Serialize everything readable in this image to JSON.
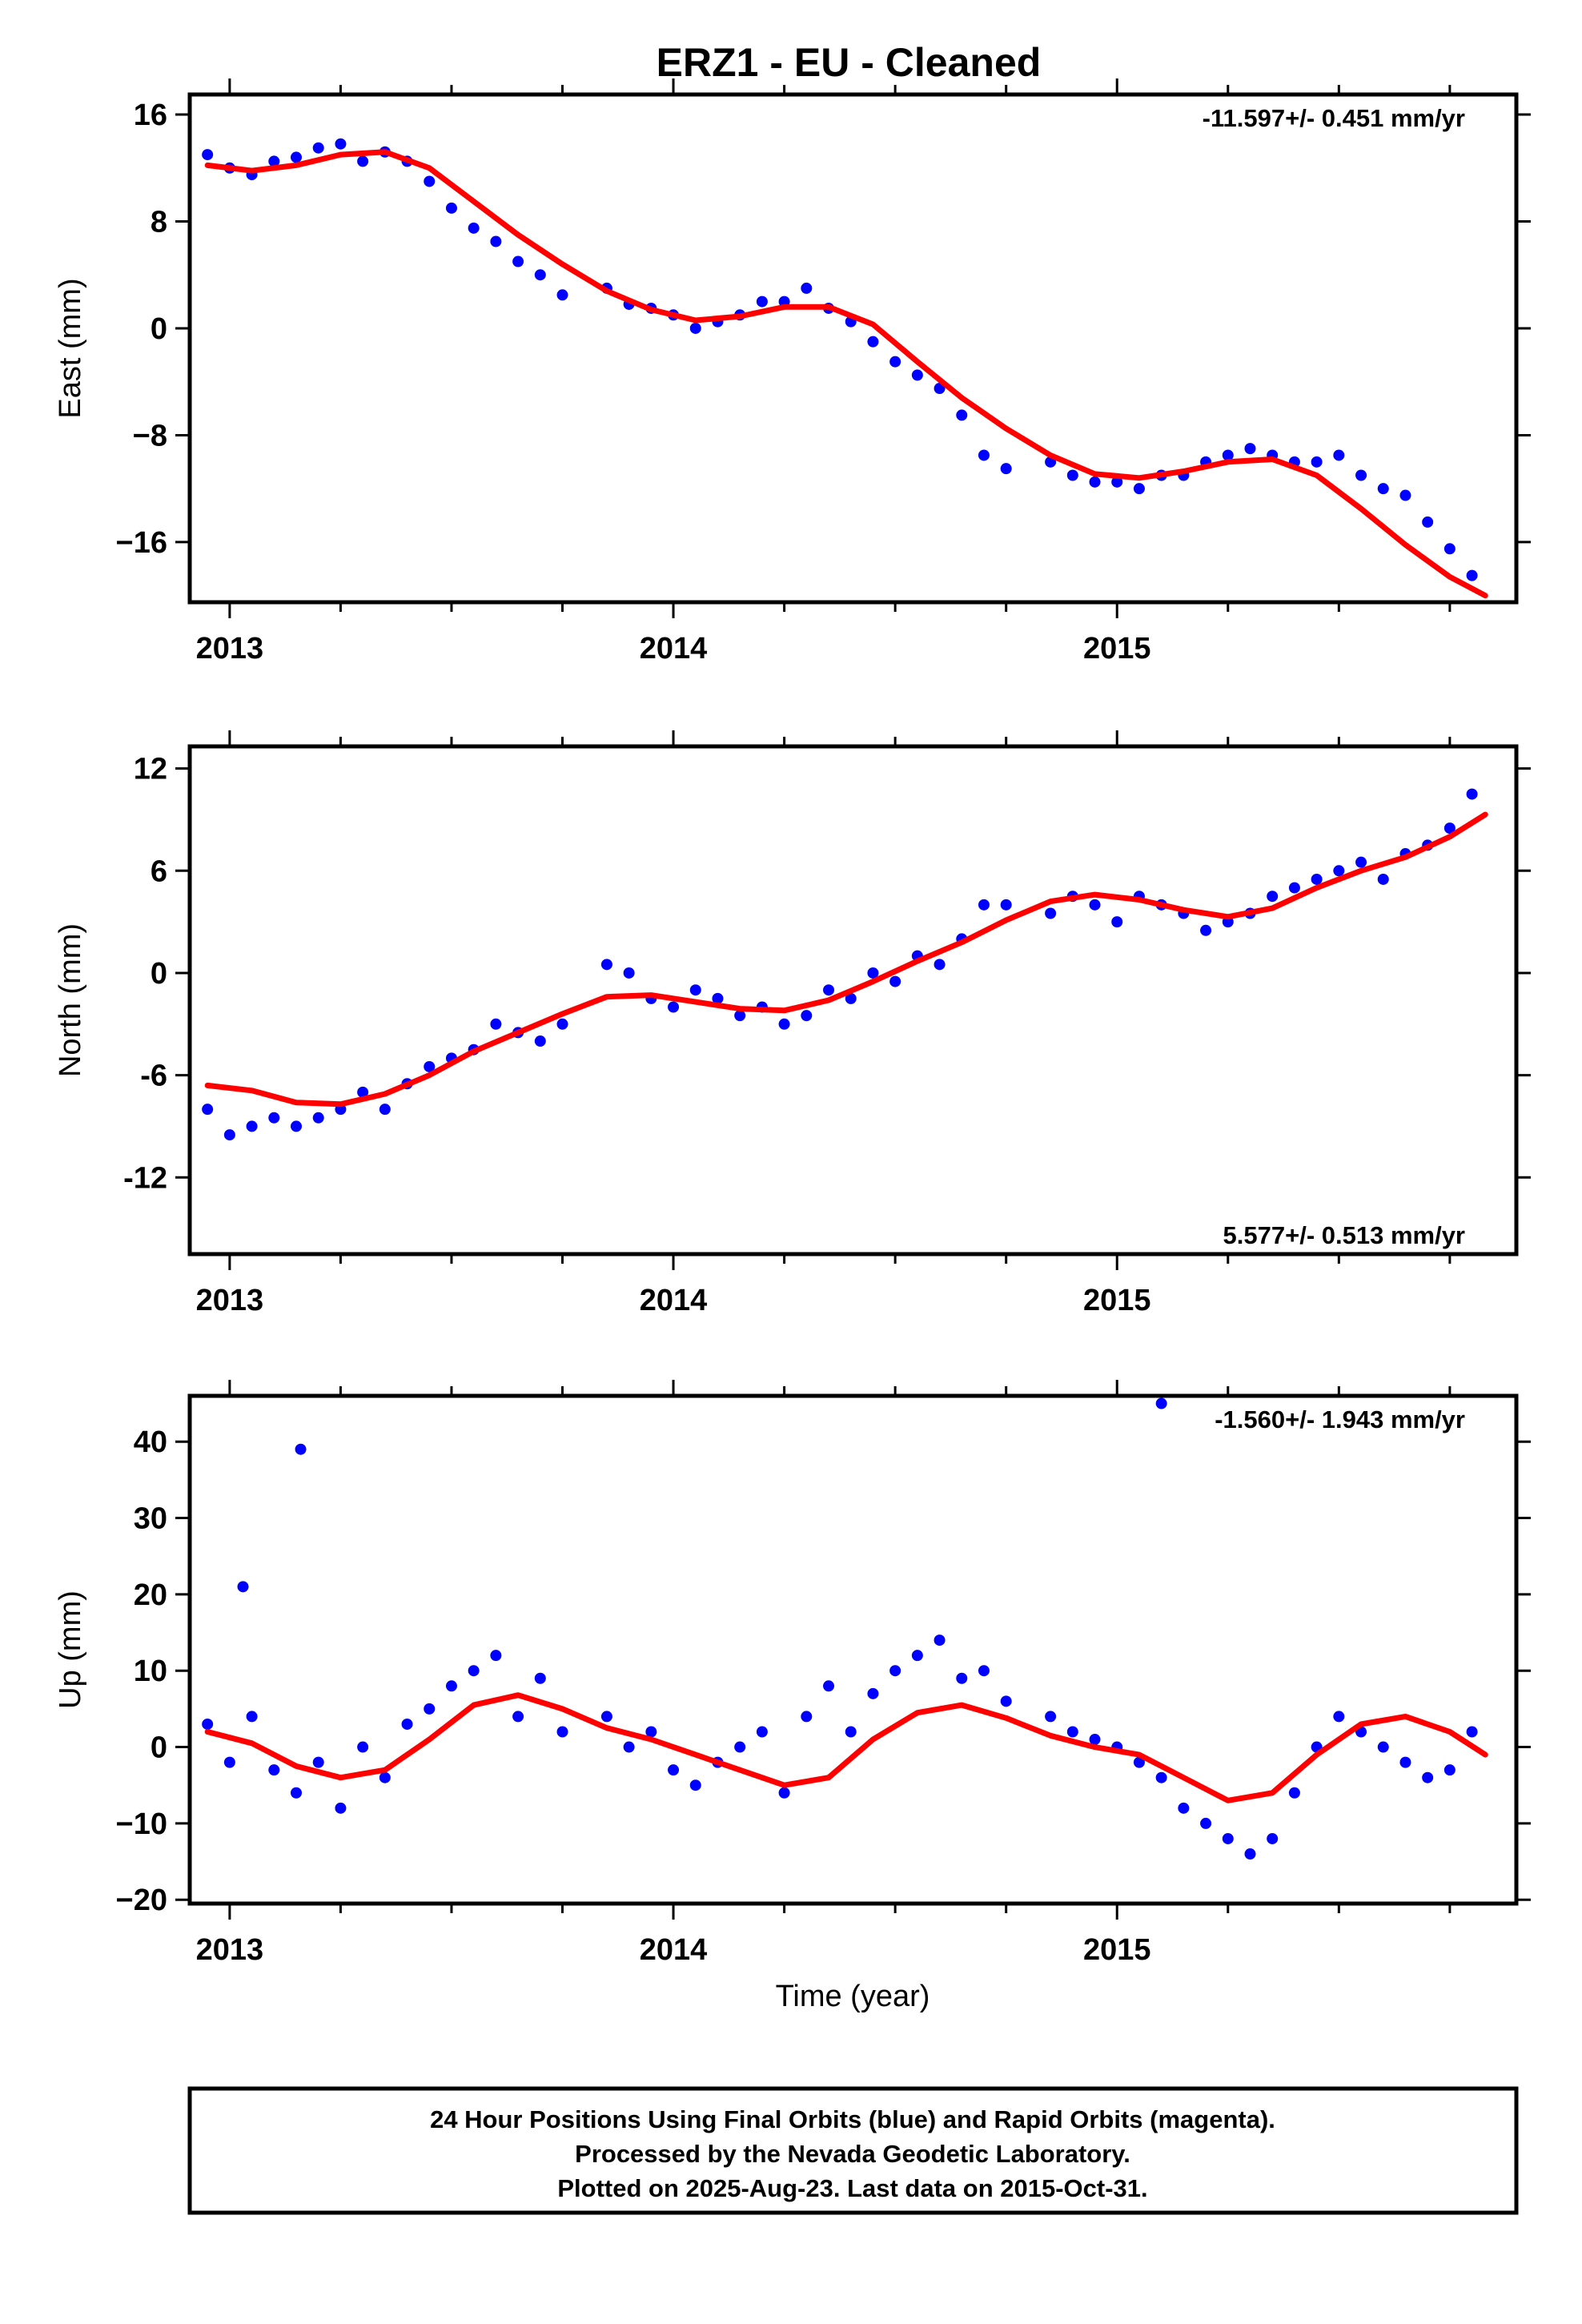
{
  "title": "ERZ1  - EU - Cleaned",
  "xlabel": "Time (year)",
  "colors": {
    "points": "#0000ff",
    "fit": "#ff0000",
    "frame": "#000000"
  },
  "footer": {
    "lines": [
      "24 Hour Positions Using Final Orbits (blue) and Rapid Orbits (magenta).",
      "Processed by the Nevada Geodetic Laboratory.",
      "Plotted on 2025-Aug-23. Last data on 2015-Oct-31."
    ]
  },
  "chart_data": [
    {
      "type": "scatter",
      "component": "east",
      "ylabel": "East (mm)",
      "xlim": [
        2012.91,
        2015.9
      ],
      "ylim": [
        -20.5,
        17.5
      ],
      "xticks": [
        2013,
        2014,
        2015
      ],
      "xtick_labels": [
        "2013",
        "2014",
        "2015"
      ],
      "yticks": [
        16,
        8,
        0,
        -8,
        -16
      ],
      "ytick_labels": [
        "16",
        "8",
        "0",
        "−8",
        "−16"
      ],
      "rate_label": "-11.597+/- 0.451 mm/yr",
      "rate_position": "top-right",
      "fit_curve": {
        "x": [
          2012.95,
          2013.05,
          2013.15,
          2013.25,
          2013.35,
          2013.45,
          2013.55,
          2013.65,
          2013.75,
          2013.85,
          2013.95,
          2014.05,
          2014.15,
          2014.25,
          2014.35,
          2014.45,
          2014.55,
          2014.65,
          2014.75,
          2014.85,
          2014.95,
          2015.05,
          2015.15,
          2015.25,
          2015.35,
          2015.45,
          2015.55,
          2015.65,
          2015.75,
          2015.83
        ],
        "y": [
          12.2,
          11.8,
          12.2,
          13.0,
          13.2,
          12.0,
          9.5,
          7.0,
          4.8,
          2.8,
          1.4,
          0.6,
          0.9,
          1.6,
          1.6,
          0.3,
          -2.5,
          -5.2,
          -7.5,
          -9.5,
          -10.9,
          -11.2,
          -10.7,
          -10.0,
          -9.8,
          -11.0,
          -13.5,
          -16.2,
          -18.6,
          -20.0
        ]
      },
      "points": {
        "x": [
          2012.95,
          2013.0,
          2013.05,
          2013.1,
          2013.15,
          2013.2,
          2013.25,
          2013.3,
          2013.35,
          2013.4,
          2013.45,
          2013.5,
          2013.55,
          2013.6,
          2013.65,
          2013.7,
          2013.75,
          2013.85,
          2013.9,
          2013.95,
          2014.0,
          2014.05,
          2014.1,
          2014.15,
          2014.2,
          2014.25,
          2014.3,
          2014.35,
          2014.4,
          2014.45,
          2014.5,
          2014.55,
          2014.6,
          2014.65,
          2014.7,
          2014.75,
          2014.85,
          2014.9,
          2014.95,
          2015.0,
          2015.05,
          2015.1,
          2015.15,
          2015.2,
          2015.25,
          2015.3,
          2015.35,
          2015.4,
          2015.45,
          2015.5,
          2015.55,
          2015.6,
          2015.65,
          2015.7,
          2015.75,
          2015.8
        ],
        "y": [
          13.0,
          12.0,
          11.5,
          12.5,
          12.8,
          13.5,
          13.8,
          12.5,
          13.2,
          12.5,
          11.0,
          9.0,
          7.5,
          6.5,
          5.0,
          4.0,
          2.5,
          3.0,
          1.8,
          1.5,
          1.0,
          0.0,
          0.5,
          1.0,
          2.0,
          2.0,
          3.0,
          1.5,
          0.5,
          -1.0,
          -2.5,
          -3.5,
          -4.5,
          -6.5,
          -9.5,
          -10.5,
          -10.0,
          -11.0,
          -11.5,
          -11.5,
          -12.0,
          -11.0,
          -11.0,
          -10.0,
          -9.5,
          -9.0,
          -9.5,
          -10.0,
          -10.0,
          -9.5,
          -11.0,
          -12.0,
          -12.5,
          -14.5,
          -16.5,
          -18.5
        ]
      }
    },
    {
      "type": "scatter",
      "component": "north",
      "ylabel": "North (mm)",
      "xlim": [
        2012.91,
        2015.9
      ],
      "ylim": [
        -16.5,
        13.3
      ],
      "xticks": [
        2013,
        2014,
        2015
      ],
      "xtick_labels": [
        "2013",
        "2014",
        "2015"
      ],
      "yticks": [
        12,
        6,
        0,
        -6,
        -12
      ],
      "ytick_labels": [
        "12",
        "6",
        "0",
        "-6",
        "-12"
      ],
      "rate_label": "5.577+/- 0.513 mm/yr",
      "rate_position": "bottom-right",
      "fit_curve": {
        "x": [
          2012.95,
          2013.05,
          2013.15,
          2013.25,
          2013.35,
          2013.45,
          2013.55,
          2013.65,
          2013.75,
          2013.85,
          2013.95,
          2014.05,
          2014.15,
          2014.25,
          2014.35,
          2014.45,
          2014.55,
          2014.65,
          2014.75,
          2014.85,
          2014.95,
          2015.05,
          2015.15,
          2015.25,
          2015.35,
          2015.45,
          2015.55,
          2015.65,
          2015.75,
          2015.83
        ],
        "y": [
          -6.6,
          -6.9,
          -7.6,
          -7.7,
          -7.1,
          -6.0,
          -4.6,
          -3.5,
          -2.4,
          -1.4,
          -1.3,
          -1.7,
          -2.1,
          -2.2,
          -1.6,
          -0.5,
          0.7,
          1.8,
          3.1,
          4.2,
          4.6,
          4.3,
          3.7,
          3.3,
          3.8,
          5.0,
          6.0,
          6.8,
          8.0,
          9.3
        ]
      },
      "points": {
        "x": [
          2012.95,
          2013.0,
          2013.05,
          2013.1,
          2013.15,
          2013.2,
          2013.25,
          2013.3,
          2013.35,
          2013.4,
          2013.45,
          2013.5,
          2013.55,
          2013.6,
          2013.65,
          2013.7,
          2013.75,
          2013.85,
          2013.9,
          2013.95,
          2014.0,
          2014.05,
          2014.1,
          2014.15,
          2014.2,
          2014.25,
          2014.3,
          2014.35,
          2014.4,
          2014.45,
          2014.5,
          2014.55,
          2014.6,
          2014.65,
          2014.7,
          2014.75,
          2014.85,
          2014.9,
          2014.95,
          2015.0,
          2015.05,
          2015.1,
          2015.15,
          2015.2,
          2015.25,
          2015.3,
          2015.35,
          2015.4,
          2015.45,
          2015.5,
          2015.55,
          2015.6,
          2015.65,
          2015.7,
          2015.75,
          2015.8
        ],
        "y": [
          -8.0,
          -9.5,
          -9.0,
          -8.5,
          -9.0,
          -8.5,
          -8.0,
          -7.0,
          -8.0,
          -6.5,
          -5.5,
          -5.0,
          -4.5,
          -3.0,
          -3.5,
          -4.0,
          -3.0,
          0.5,
          0.0,
          -1.5,
          -2.0,
          -1.0,
          -1.5,
          -2.5,
          -2.0,
          -3.0,
          -2.5,
          -1.0,
          -1.5,
          0.0,
          -0.5,
          1.0,
          0.5,
          2.0,
          4.0,
          4.0,
          3.5,
          4.5,
          4.0,
          3.0,
          4.5,
          4.0,
          3.5,
          2.5,
          3.0,
          3.5,
          4.5,
          5.0,
          5.5,
          6.0,
          6.5,
          5.5,
          7.0,
          7.5,
          8.5,
          10.5
        ]
      }
    },
    {
      "type": "scatter",
      "component": "up",
      "ylabel": "Up (mm)",
      "xlim": [
        2012.91,
        2015.9
      ],
      "ylim": [
        -20.5,
        46.0
      ],
      "xticks": [
        2013,
        2014,
        2015
      ],
      "xtick_labels": [
        "2013",
        "2014",
        "2015"
      ],
      "yticks": [
        40,
        30,
        20,
        10,
        0,
        -10,
        -20
      ],
      "ytick_labels": [
        "40",
        "30",
        "20",
        "10",
        "0",
        "−10",
        "−20"
      ],
      "rate_label": "-1.560+/- 1.943 mm/yr",
      "rate_position": "top-right",
      "fit_curve": {
        "x": [
          2012.95,
          2013.05,
          2013.15,
          2013.25,
          2013.35,
          2013.45,
          2013.55,
          2013.65,
          2013.75,
          2013.85,
          2013.95,
          2014.05,
          2014.15,
          2014.25,
          2014.35,
          2014.45,
          2014.55,
          2014.65,
          2014.75,
          2014.85,
          2014.95,
          2015.05,
          2015.15,
          2015.25,
          2015.35,
          2015.45,
          2015.55,
          2015.65,
          2015.75,
          2015.83
        ],
        "y": [
          2.0,
          0.5,
          -2.5,
          -4.0,
          -3.0,
          1.0,
          5.5,
          6.8,
          5.0,
          2.5,
          1.0,
          -1.0,
          -3.0,
          -5.0,
          -4.0,
          1.0,
          4.5,
          5.5,
          3.8,
          1.5,
          0.0,
          -1.0,
          -4.0,
          -7.0,
          -6.0,
          -1.0,
          3.0,
          4.0,
          2.0,
          -1.0
        ]
      },
      "points": {
        "x": [
          2012.95,
          2013.0,
          2013.05,
          2013.1,
          2013.15,
          2013.2,
          2013.25,
          2013.3,
          2013.35,
          2013.4,
          2013.45,
          2013.5,
          2013.55,
          2013.6,
          2013.65,
          2013.7,
          2013.75,
          2013.85,
          2013.9,
          2013.95,
          2014.0,
          2014.05,
          2014.1,
          2014.15,
          2014.2,
          2014.25,
          2014.3,
          2014.35,
          2014.4,
          2014.45,
          2014.5,
          2014.55,
          2014.6,
          2014.65,
          2014.7,
          2014.75,
          2014.85,
          2014.9,
          2014.95,
          2015.0,
          2015.05,
          2015.1,
          2015.15,
          2015.2,
          2015.25,
          2015.3,
          2015.35,
          2015.4,
          2015.45,
          2015.5,
          2015.55,
          2015.6,
          2015.65,
          2015.7,
          2015.75,
          2015.8,
          2013.03,
          2013.16,
          2015.1
        ],
        "y": [
          3.0,
          -2.0,
          4.0,
          -3.0,
          -6.0,
          -2.0,
          -8.0,
          0.0,
          -4.0,
          3.0,
          5.0,
          8.0,
          10.0,
          12.0,
          4.0,
          9.0,
          2.0,
          4.0,
          0.0,
          2.0,
          -3.0,
          -5.0,
          -2.0,
          0.0,
          2.0,
          -6.0,
          4.0,
          8.0,
          2.0,
          7.0,
          10.0,
          12.0,
          14.0,
          9.0,
          10.0,
          6.0,
          4.0,
          2.0,
          1.0,
          0.0,
          -2.0,
          -4.0,
          -8.0,
          -10.0,
          -12.0,
          -14.0,
          -12.0,
          -6.0,
          0.0,
          4.0,
          2.0,
          0.0,
          -2.0,
          -4.0,
          -3.0,
          2.0,
          21.0,
          39.0,
          45.0
        ]
      }
    }
  ]
}
